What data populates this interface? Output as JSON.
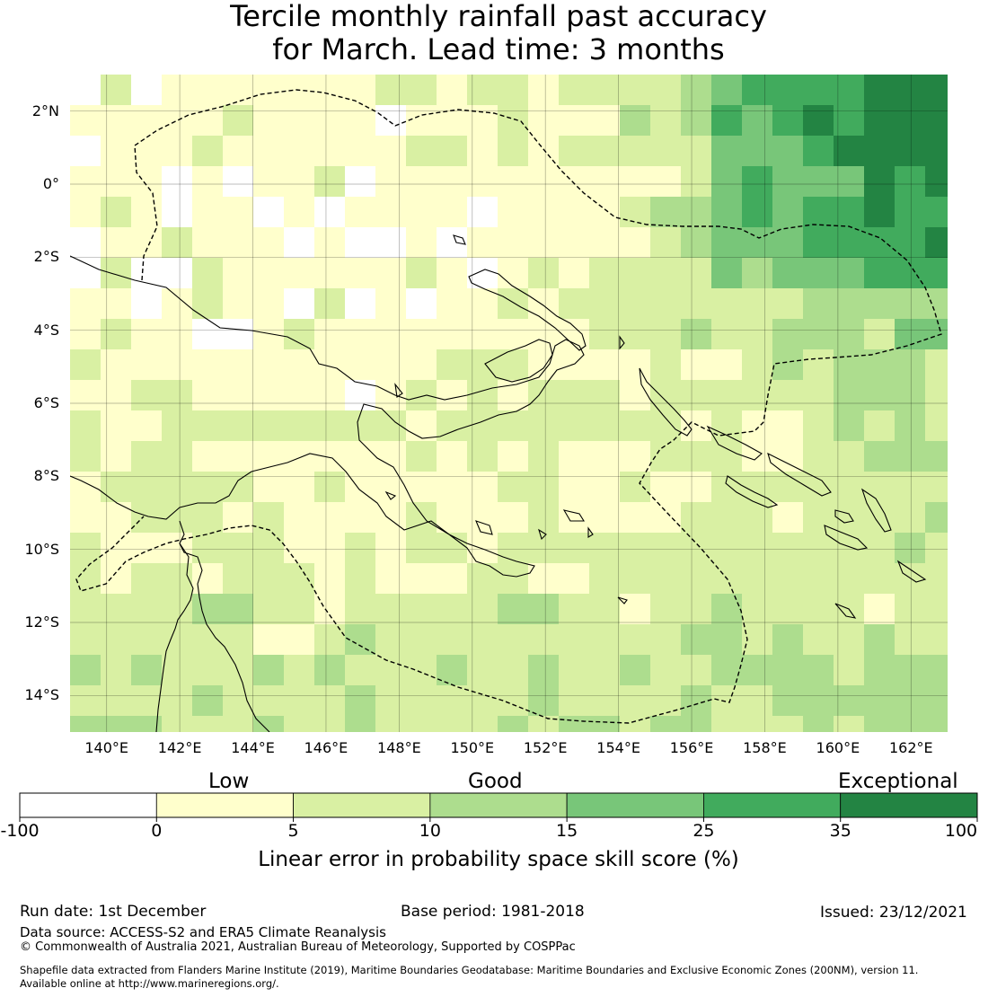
{
  "title": {
    "line1": "Tercile monthly rainfall past accuracy",
    "line2": "for March. Lead time: 3 months"
  },
  "map": {
    "lon_range": [
      139.0,
      163.0
    ],
    "lat_range": [
      -15.0,
      3.0
    ],
    "lat_ticks": [
      "2°N",
      "0°",
      "2°S",
      "4°S",
      "6°S",
      "8°S",
      "10°S",
      "12°S",
      "14°S"
    ],
    "lon_ticks": [
      "140°E",
      "142°E",
      "144°E",
      "146°E",
      "148°E",
      "150°E",
      "152°E",
      "154°E",
      "156°E",
      "158°E",
      "160°E",
      "162°E"
    ]
  },
  "colorbar": {
    "categories": [
      "Low",
      "Good",
      "Exceptional"
    ],
    "ticks": [
      "-100",
      "0",
      "5",
      "10",
      "15",
      "25",
      "35",
      "100"
    ],
    "colors": [
      "#ffffff",
      "#ffffcc",
      "#d9f0a3",
      "#addd8e",
      "#78c679",
      "#41ab5d",
      "#238443"
    ],
    "label": "Linear error in probability space skill score (%)"
  },
  "footer": {
    "run_date": "Run date: 1st December",
    "base_period": "Base period: 1981-2018",
    "issued": "Issued: 23/12/2021",
    "data_source": "Data source: ACCESS-S2 and ERA5 Climate Reanalysis",
    "copyright": "© Commonwealth of Australia 2021, Australian Bureau of Meteorology, Supported by COSPPac",
    "shapefile_line1": "Shapefile data extracted from Flanders Marine Institute (2019), Maritime Boundaries Geodatabase: Maritime Boundaries and Exclusive Economic Zones (200NM), version 11.",
    "shapefile_line2": "Available online at http://www.marineregions.org/."
  }
}
